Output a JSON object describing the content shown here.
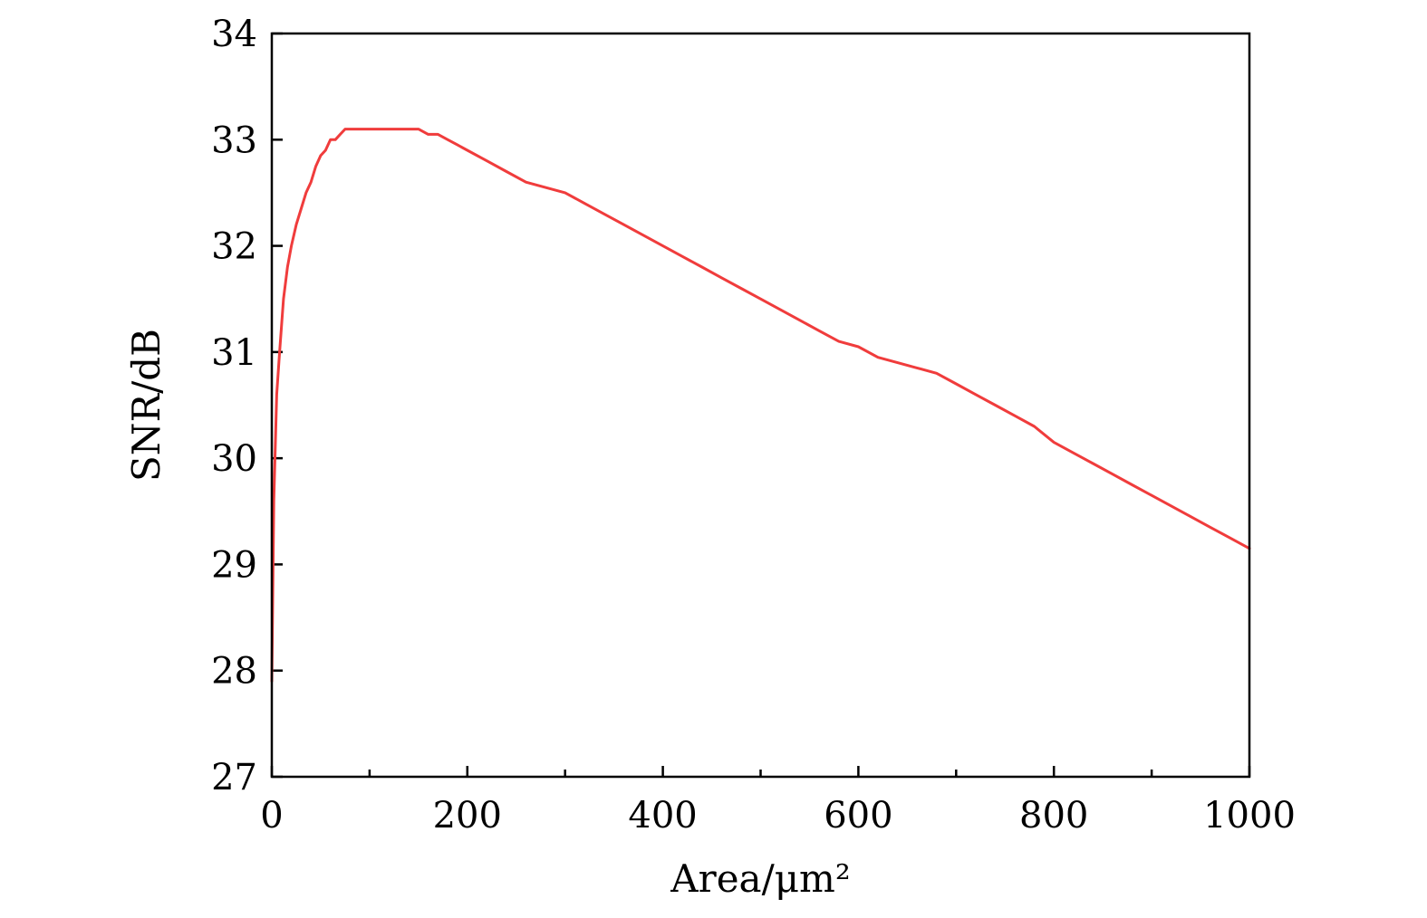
{
  "chart_data": {
    "type": "line",
    "title": "",
    "xlabel": "Area/μm²",
    "ylabel": "SNR/dB",
    "xlim": [
      0,
      1000
    ],
    "ylim": [
      27,
      34
    ],
    "xticks": [
      0,
      200,
      400,
      600,
      800,
      1000
    ],
    "yticks": [
      27,
      28,
      29,
      30,
      31,
      32,
      33,
      34
    ],
    "xticks_minor": [
      100,
      300,
      500,
      700,
      900
    ],
    "grid": false,
    "legend": "none",
    "line_color": "#f03c3c",
    "series": [
      {
        "x": [
          0,
          2,
          5,
          8,
          12,
          16,
          20,
          25,
          30,
          35,
          40,
          45,
          50,
          55,
          60,
          65,
          70,
          75,
          80,
          90,
          100,
          110,
          120,
          130,
          140,
          150,
          160,
          170,
          180,
          190,
          200,
          220,
          240,
          260,
          280,
          300,
          320,
          340,
          360,
          380,
          400,
          420,
          440,
          460,
          480,
          500,
          520,
          540,
          560,
          580,
          600,
          620,
          640,
          660,
          680,
          700,
          720,
          740,
          760,
          780,
          800,
          820,
          840,
          860,
          880,
          900,
          920,
          940,
          960,
          980,
          1000
        ],
        "y": [
          27.9,
          29.6,
          30.6,
          31.0,
          31.5,
          31.8,
          32.0,
          32.2,
          32.35,
          32.5,
          32.6,
          32.75,
          32.85,
          32.9,
          33.0,
          33.0,
          33.05,
          33.1,
          33.1,
          33.1,
          33.1,
          33.1,
          33.1,
          33.1,
          33.1,
          33.1,
          33.05,
          33.05,
          33.0,
          32.95,
          32.9,
          32.8,
          32.7,
          32.6,
          32.55,
          32.5,
          32.4,
          32.3,
          32.2,
          32.1,
          32.0,
          31.9,
          31.8,
          31.7,
          31.6,
          31.5,
          31.4,
          31.3,
          31.2,
          31.1,
          31.05,
          30.95,
          30.9,
          30.85,
          30.8,
          30.7,
          30.6,
          30.5,
          30.4,
          30.3,
          30.15,
          30.05,
          29.95,
          29.85,
          29.75,
          29.65,
          29.55,
          29.45,
          29.35,
          29.25,
          29.15
        ]
      }
    ]
  }
}
